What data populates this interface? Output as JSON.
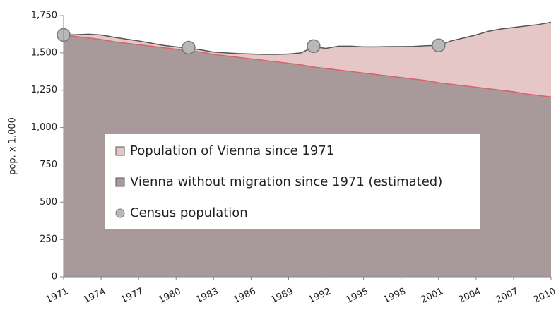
{
  "chart_data": {
    "type": "area",
    "y_label": "pop. x 1,000",
    "x": [
      1971,
      1972,
      1973,
      1974,
      1975,
      1976,
      1977,
      1978,
      1979,
      1980,
      1981,
      1982,
      1983,
      1984,
      1985,
      1986,
      1987,
      1988,
      1989,
      1990,
      1991,
      1992,
      1993,
      1994,
      1995,
      1996,
      1997,
      1998,
      1999,
      2000,
      2001,
      2002,
      2003,
      2004,
      2005,
      2006,
      2007,
      2008,
      2009,
      2010
    ],
    "series": [
      {
        "name": "Population of Vienna since 1971",
        "color": "#e6c7c8",
        "line_color": "#555555",
        "values": [
          1620,
          1622,
          1625,
          1620,
          1605,
          1592,
          1580,
          1565,
          1550,
          1540,
          1531,
          1520,
          1505,
          1500,
          1495,
          1492,
          1490,
          1490,
          1492,
          1500,
          1540,
          1530,
          1545,
          1545,
          1540,
          1540,
          1542,
          1542,
          1543,
          1548,
          1550,
          1580,
          1600,
          1620,
          1645,
          1660,
          1670,
          1680,
          1690,
          1705
        ]
      },
      {
        "name": "Vienna without migration since 1971 (estimated)",
        "color": "#a89a9a",
        "line_color": "#d9626a",
        "values": [
          1620,
          1610,
          1600,
          1590,
          1575,
          1565,
          1555,
          1545,
          1535,
          1525,
          1515,
          1505,
          1490,
          1480,
          1470,
          1460,
          1450,
          1440,
          1430,
          1420,
          1405,
          1395,
          1385,
          1375,
          1365,
          1355,
          1345,
          1335,
          1325,
          1315,
          1300,
          1290,
          1280,
          1270,
          1260,
          1250,
          1240,
          1225,
          1215,
          1205
        ]
      },
      {
        "name": "Census population",
        "type": "scatter",
        "color": "#b8b8b8",
        "x": [
          1971,
          1981,
          1991,
          2001
        ],
        "values": [
          1620,
          1535,
          1545,
          1550
        ]
      }
    ],
    "xlim": [
      1971,
      2010
    ],
    "xticks": [
      1971,
      1974,
      1977,
      1980,
      1983,
      1986,
      1989,
      1992,
      1995,
      1998,
      2001,
      2004,
      2007,
      2010
    ],
    "ylim": [
      0,
      1750
    ],
    "yticks": [
      0,
      250,
      500,
      750,
      {
        "value": 1000,
        "label": "1,000"
      },
      {
        "value": 1250,
        "label": "1,250"
      },
      {
        "value": 1500,
        "label": "1,500"
      },
      {
        "value": 1750,
        "label": "1,750"
      }
    ]
  }
}
